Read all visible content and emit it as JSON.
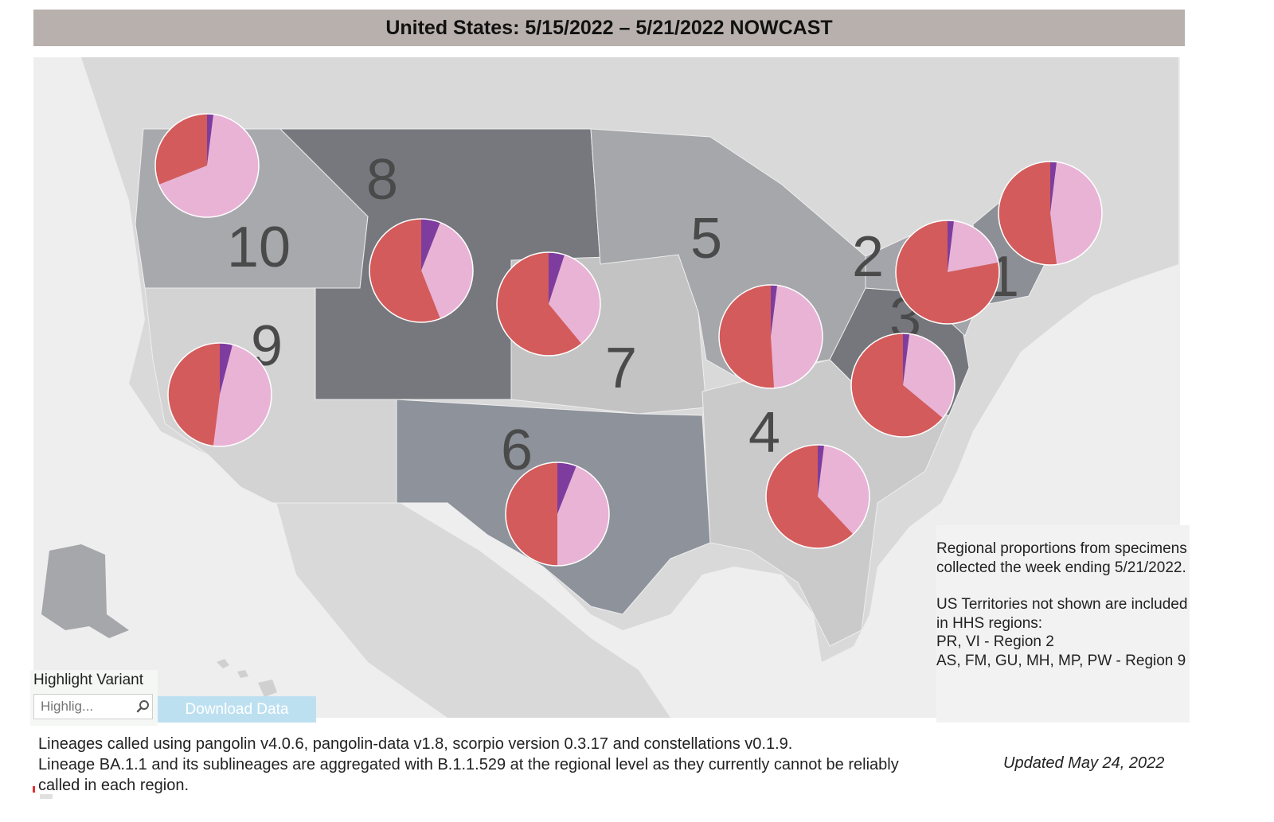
{
  "title": "United States: 5/15/2022 – 5/21/2022 NOWCAST",
  "colors": {
    "title_bar": "#b8b0ac",
    "ocean_background": "#eeeeee",
    "land": "#d9d9d9",
    "variant_red": "#d45b5b",
    "variant_pink": "#e9b3d6",
    "variant_purple": "#7e3d9e",
    "download_button": "#bde0f1"
  },
  "variants": [
    {
      "key": "red",
      "color": "#d45b5b"
    },
    {
      "key": "pink",
      "color": "#e9b3d6"
    },
    {
      "key": "purple",
      "color": "#7e3d9e"
    }
  ],
  "regions": [
    {
      "id": "1",
      "label": "1",
      "fill": "#8c8f96",
      "pie": {
        "purple": 0.02,
        "red": 0.52,
        "pink": 0.46
      }
    },
    {
      "id": "2",
      "label": "2",
      "fill": "#a3a5aa",
      "pie": {
        "purple": 0.02,
        "red": 0.78,
        "pink": 0.2
      }
    },
    {
      "id": "3",
      "label": "3",
      "fill": "#76777c",
      "pie": {
        "purple": 0.02,
        "red": 0.64,
        "pink": 0.34
      }
    },
    {
      "id": "4",
      "label": "4",
      "fill": "#cacaca",
      "pie": {
        "purple": 0.02,
        "red": 0.62,
        "pink": 0.36
      }
    },
    {
      "id": "5",
      "label": "5",
      "fill": "#a5a7ab",
      "pie": {
        "purple": 0.02,
        "red": 0.51,
        "pink": 0.47
      }
    },
    {
      "id": "6",
      "label": "6",
      "fill": "#8d929b",
      "pie": {
        "purple": 0.06,
        "red": 0.5,
        "pink": 0.44
      }
    },
    {
      "id": "7",
      "label": "7",
      "fill": "#c3c3c3",
      "pie": {
        "purple": 0.05,
        "red": 0.61,
        "pink": 0.34
      }
    },
    {
      "id": "8",
      "label": "8",
      "fill": "#77787d",
      "pie": {
        "purple": 0.06,
        "red": 0.56,
        "pink": 0.38
      }
    },
    {
      "id": "9",
      "label": "9",
      "fill": "#d3d3d3",
      "pie": {
        "purple": 0.04,
        "red": 0.48,
        "pink": 0.48
      }
    },
    {
      "id": "10",
      "label": "10",
      "fill": "#a8a9ad",
      "pie": {
        "purple": 0.02,
        "red": 0.31,
        "pink": 0.67
      }
    }
  ],
  "info_box": {
    "para1": "Regional proportions from specimens collected the week ending 5/21/2022.",
    "para2": "US Territories not shown are included in HHS regions:\nPR, VI - Region 2\nAS, FM, GU, MH, MP, PW - Region 9"
  },
  "highlight_variant": {
    "label": "Highlight Variant",
    "placeholder": "Highlig...",
    "search_icon": "search-icon"
  },
  "download_label": "Download Data",
  "footnote": {
    "line1": "Lineages called using pangolin v4.0.6, pangolin-data v1.8, scorpio version 0.3.17 and constellations v0.1.9.",
    "line2": "Lineage BA.1.1 and its sublineages are aggregated with B.1.1.529 at the regional level as they currently cannot be reliably called in each region."
  },
  "updated": "Updated May 24, 2022"
}
